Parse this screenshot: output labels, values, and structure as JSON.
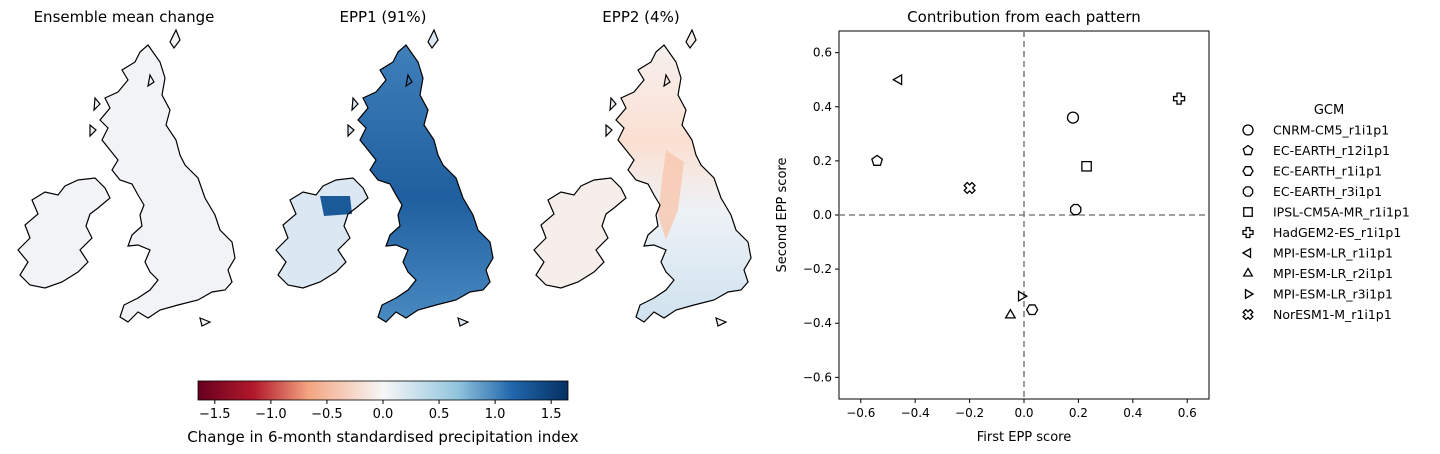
{
  "maps": {
    "panels": [
      {
        "title": "Ensemble mean change",
        "field": "neutral"
      },
      {
        "title": "EPP1 (91%)",
        "field": "blue"
      },
      {
        "title": "EPP2 (4%)",
        "field": "mixed"
      }
    ],
    "colorbar": {
      "label": "Change in 6-month standardised precipitation index",
      "ticks": [
        -1.5,
        -1.0,
        -0.5,
        0.0,
        0.5,
        1.0,
        1.5
      ],
      "tick_labels": [
        "−1.5",
        "−1.0",
        "−0.5",
        "0.0",
        "0.5",
        "1.0",
        "1.5"
      ],
      "range": [
        -1.65,
        1.65
      ],
      "colormap": "RdBu",
      "colors": {
        "neg_end": "#67001f",
        "neg_mid": "#f4a582",
        "zero": "#f7f7f7",
        "pos_mid": "#92c5de",
        "pos_end": "#053061"
      }
    }
  },
  "chart_data": {
    "type": "scatter",
    "title": "Contribution from each pattern",
    "xlabel": "First EPP score",
    "ylabel": "Second EPP score",
    "xlim": [
      -0.68,
      0.68
    ],
    "ylim": [
      -0.68,
      0.68
    ],
    "xticks": [
      -0.6,
      -0.4,
      -0.2,
      0.0,
      0.2,
      0.4,
      0.6
    ],
    "xtick_labels": [
      "−0.6",
      "−0.4",
      "−0.2",
      "0.0",
      "0.2",
      "0.4",
      "0.6"
    ],
    "yticks": [
      -0.6,
      -0.4,
      -0.2,
      0.0,
      0.2,
      0.4,
      0.6
    ],
    "ytick_labels": [
      "−0.6",
      "−0.4",
      "−0.2",
      "0.0",
      "0.2",
      "0.4",
      "0.6"
    ],
    "reference_lines": {
      "x": 0,
      "y": 0,
      "style": "dashed",
      "color": "#808080"
    },
    "legend": {
      "title": "GCM",
      "placement": "outside-right"
    },
    "series": [
      {
        "name": "CNRM-CM5_r1i1p1",
        "marker": "circle",
        "x": 0.18,
        "y": 0.36
      },
      {
        "name": "EC-EARTH_r12i1p1",
        "marker": "pentagon",
        "x": -0.54,
        "y": 0.2
      },
      {
        "name": "EC-EARTH_r1i1p1",
        "marker": "hexagon-flat",
        "x": 0.03,
        "y": -0.35
      },
      {
        "name": "EC-EARTH_r3i1p1",
        "marker": "octagon",
        "x": 0.19,
        "y": 0.02
      },
      {
        "name": "IPSL-CM5A-MR_r1i1p1",
        "marker": "square",
        "x": 0.23,
        "y": 0.18
      },
      {
        "name": "HadGEM2-ES_r1i1p1",
        "marker": "plus-filled",
        "x": 0.57,
        "y": 0.43
      },
      {
        "name": "MPI-ESM-LR_r1i1p1",
        "marker": "triangle-left",
        "x": -0.46,
        "y": 0.5
      },
      {
        "name": "MPI-ESM-LR_r2i1p1",
        "marker": "triangle-up",
        "x": -0.05,
        "y": -0.37
      },
      {
        "name": "MPI-ESM-LR_r3i1p1",
        "marker": "triangle-right",
        "x": -0.01,
        "y": -0.3
      },
      {
        "name": "NorESM1-M_r1i1p1",
        "marker": "x-filled",
        "x": -0.2,
        "y": 0.1
      }
    ]
  }
}
